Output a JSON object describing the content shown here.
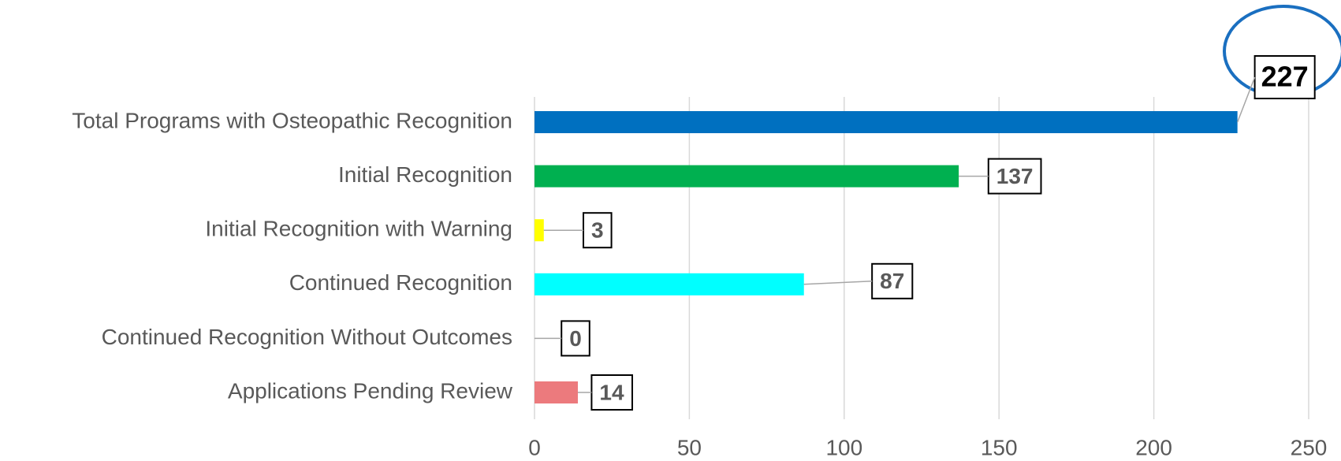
{
  "chart_data": {
    "type": "barh",
    "categories": [
      "Total Programs with Osteopathic Recognition",
      "Initial Recognition",
      "Initial Recognition with Warning",
      "Continued Recognition",
      "Continued  Recognition Without Outcomes",
      "Applications Pending Review"
    ],
    "values": [
      227,
      137,
      3,
      87,
      0,
      14
    ],
    "colors": [
      "#0070c0",
      "#00b050",
      "#ffff00",
      "#00ffff",
      "#7030a0",
      "#ec7a7d"
    ],
    "xlim": [
      0,
      250
    ],
    "xticks": [
      0,
      50,
      100,
      150,
      200,
      250
    ],
    "grid": true
  }
}
